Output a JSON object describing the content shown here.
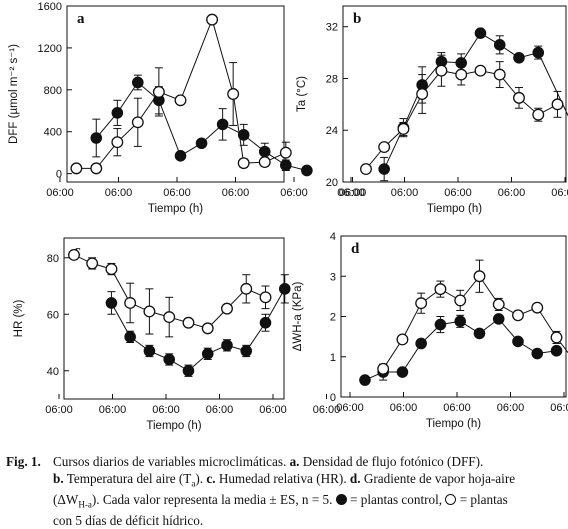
{
  "figure": {
    "time_ticks": [
      "06:00",
      "06:00",
      "06:00",
      "06:00",
      "06:00",
      "06:00"
    ],
    "panel_labels": [
      "a",
      "b",
      "c",
      "d"
    ],
    "xlabel": "Tiempo (h)"
  },
  "chart_data": [
    {
      "id": "a",
      "type": "line",
      "panel_label": "a",
      "xlabel": "Tiempo (h)",
      "ylabel": "DFF (µmol m⁻² s⁻¹)",
      "xticks": [
        0,
        1,
        2,
        3,
        4,
        5
      ],
      "xticklabels": [
        "06:00",
        "06:00",
        "06:00",
        "06:00",
        "06:00",
        "06:00"
      ],
      "ylim": [
        -80,
        1600
      ],
      "yticks": [
        0,
        400,
        800,
        1200,
        1600
      ],
      "series": [
        {
          "marker": "filled",
          "points": [
            {
              "x": 0.62,
              "y": 340,
              "err": 180
            },
            {
              "x": 0.98,
              "y": 580,
              "err": 120
            },
            {
              "x": 1.33,
              "y": 870,
              "err": 70
            },
            {
              "x": 1.69,
              "y": 700,
              "err": 130
            },
            {
              "x": 2.06,
              "y": 170,
              "err": 0
            },
            {
              "x": 2.42,
              "y": 290,
              "err": 0
            },
            {
              "x": 2.78,
              "y": 470,
              "err": 150
            },
            {
              "x": 3.14,
              "y": 370,
              "err": 100
            },
            {
              "x": 3.5,
              "y": 210,
              "err": 80
            },
            {
              "x": 3.86,
              "y": 80,
              "err": 50
            },
            {
              "x": 4.22,
              "y": 30,
              "err": 0
            }
          ]
        },
        {
          "marker": "open",
          "points": [
            {
              "x": 0.28,
              "y": 50,
              "err": 0
            },
            {
              "x": 0.62,
              "y": 50,
              "err": 0
            },
            {
              "x": 0.98,
              "y": 300,
              "err": 130
            },
            {
              "x": 1.33,
              "y": 490,
              "err": 230
            },
            {
              "x": 1.69,
              "y": 780,
              "err": 230
            },
            {
              "x": 2.06,
              "y": 700,
              "err": 0
            },
            {
              "x": 2.6,
              "y": 1470,
              "err": 0
            },
            {
              "x": 2.96,
              "y": 760,
              "err": 300
            },
            {
              "x": 3.14,
              "y": 100,
              "err": 40
            },
            {
              "x": 3.5,
              "y": 110,
              "err": 40
            },
            {
              "x": 3.86,
              "y": 200,
              "err": 100
            }
          ]
        }
      ]
    },
    {
      "id": "b",
      "type": "line",
      "panel_label": "b",
      "xlabel": "Tiempo (h)",
      "ylabel": "Ta (°C)",
      "xticks": [
        0,
        1,
        2,
        3,
        4,
        5
      ],
      "xticklabels": [
        "06:00",
        "06:00",
        "06:00",
        "06:00",
        "06:00",
        "06:00"
      ],
      "ylim": [
        20,
        33.6
      ],
      "yticks": [
        20,
        24,
        28,
        32
      ],
      "series": [
        {
          "marker": "filled",
          "points": [
            {
              "x": 0.62,
              "y": 21,
              "err": 0.9
            },
            {
              "x": 0.98,
              "y": 24.2,
              "err": 0.7
            },
            {
              "x": 1.33,
              "y": 27.5,
              "err": 1.4
            },
            {
              "x": 1.69,
              "y": 29.3,
              "err": 0.7
            },
            {
              "x": 2.06,
              "y": 29.2,
              "err": 0.7
            },
            {
              "x": 2.42,
              "y": 31.5,
              "err": 0
            },
            {
              "x": 2.78,
              "y": 30.6,
              "err": 0.7
            },
            {
              "x": 3.14,
              "y": 29.6,
              "err": 0
            },
            {
              "x": 3.5,
              "y": 30,
              "err": 0.5
            },
            {
              "x": 4.22,
              "y": 23.7,
              "err": 1.4
            }
          ]
        },
        {
          "marker": "open",
          "points": [
            {
              "x": 0.28,
              "y": 21,
              "err": 0
            },
            {
              "x": 0.62,
              "y": 22.7,
              "err": 0
            },
            {
              "x": 0.98,
              "y": 24.1,
              "err": 0.5
            },
            {
              "x": 1.33,
              "y": 26.8,
              "err": 1.5
            },
            {
              "x": 1.69,
              "y": 28.6,
              "err": 1.2
            },
            {
              "x": 2.06,
              "y": 28.3,
              "err": 0.8
            },
            {
              "x": 2.42,
              "y": 28.6,
              "err": 0
            },
            {
              "x": 2.78,
              "y": 28.3,
              "err": 1
            },
            {
              "x": 3.14,
              "y": 26.5,
              "err": 0.8
            },
            {
              "x": 3.5,
              "y": 25.2,
              "err": 0.5
            },
            {
              "x": 3.86,
              "y": 26,
              "err": 1
            }
          ]
        }
      ]
    },
    {
      "id": "c",
      "type": "line",
      "panel_label": "c",
      "xlabel": "Tiempo (h)",
      "ylabel": "HR (%)",
      "xticks": [
        0,
        1,
        2,
        3,
        4,
        5
      ],
      "xticklabels": [
        "06:00",
        "06:00",
        "06:00",
        "06:00",
        "06:00",
        "06:00"
      ],
      "ylim": [
        30,
        87
      ],
      "yticks": [
        40,
        60,
        80
      ],
      "series": [
        {
          "marker": "filled",
          "points": [
            {
              "x": 0.98,
              "y": 64,
              "err": 4
            },
            {
              "x": 1.33,
              "y": 52,
              "err": 2
            },
            {
              "x": 1.69,
              "y": 47,
              "err": 2
            },
            {
              "x": 2.06,
              "y": 44,
              "err": 2
            },
            {
              "x": 2.42,
              "y": 40,
              "err": 2
            },
            {
              "x": 2.78,
              "y": 46,
              "err": 2
            },
            {
              "x": 3.14,
              "y": 49,
              "err": 2
            },
            {
              "x": 3.5,
              "y": 47,
              "err": 2
            },
            {
              "x": 3.86,
              "y": 57,
              "err": 3
            },
            {
              "x": 4.22,
              "y": 69,
              "err": 5
            }
          ]
        },
        {
          "marker": "open",
          "points": [
            {
              "x": 0.28,
              "y": 81,
              "err": 0
            },
            {
              "x": 0.62,
              "y": 78,
              "err": 2
            },
            {
              "x": 0.98,
              "y": 76,
              "err": 2
            },
            {
              "x": 1.33,
              "y": 64,
              "err": 7
            },
            {
              "x": 1.69,
              "y": 61,
              "err": 8
            },
            {
              "x": 2.06,
              "y": 59,
              "err": 7
            },
            {
              "x": 2.42,
              "y": 57,
              "err": 0
            },
            {
              "x": 2.78,
              "y": 55,
              "err": 0
            },
            {
              "x": 3.14,
              "y": 62,
              "err": 0
            },
            {
              "x": 3.5,
              "y": 69,
              "err": 5
            },
            {
              "x": 3.86,
              "y": 66,
              "err": 4
            }
          ]
        }
      ]
    },
    {
      "id": "d",
      "type": "line",
      "panel_label": "d",
      "xlabel": "Tiempo (h)",
      "ylabel": "ΔWH-a (KPa)",
      "xticks": [
        0,
        1,
        2,
        3,
        4,
        5
      ],
      "xticklabels": [
        "06:00",
        "06:00",
        "06:00",
        "06:00",
        "06:00",
        "06:00"
      ],
      "ylim": [
        0,
        4
      ],
      "yticks": [
        0,
        1,
        2,
        3,
        4
      ],
      "series": [
        {
          "marker": "filled",
          "points": [
            {
              "x": 0.28,
              "y": 0.42,
              "err": 0
            },
            {
              "x": 0.62,
              "y": 0.62,
              "err": 0.2
            },
            {
              "x": 0.98,
              "y": 0.62,
              "err": 0
            },
            {
              "x": 1.33,
              "y": 1.33,
              "err": 0
            },
            {
              "x": 1.69,
              "y": 1.8,
              "err": 0.2
            },
            {
              "x": 2.06,
              "y": 1.88,
              "err": 0.15
            },
            {
              "x": 2.42,
              "y": 1.58,
              "err": 0
            },
            {
              "x": 2.78,
              "y": 1.94,
              "err": 0
            },
            {
              "x": 3.14,
              "y": 1.38,
              "err": 0
            },
            {
              "x": 3.5,
              "y": 1.08,
              "err": 0
            },
            {
              "x": 3.86,
              "y": 1.15,
              "err": 0
            }
          ]
        },
        {
          "marker": "open",
          "points": [
            {
              "x": 0.62,
              "y": 0.7,
              "err": 0
            },
            {
              "x": 0.98,
              "y": 1.43,
              "err": 0
            },
            {
              "x": 1.33,
              "y": 2.33,
              "err": 0.25
            },
            {
              "x": 1.69,
              "y": 2.68,
              "err": 0.2
            },
            {
              "x": 2.06,
              "y": 2.4,
              "err": 0.25
            },
            {
              "x": 2.42,
              "y": 3,
              "err": 0.4
            },
            {
              "x": 2.78,
              "y": 2.3,
              "err": 0.15
            },
            {
              "x": 3.14,
              "y": 2.03,
              "err": 0.1
            },
            {
              "x": 3.5,
              "y": 2.22,
              "err": 0
            },
            {
              "x": 3.86,
              "y": 1.48,
              "err": 0.15
            },
            {
              "x": 4.22,
              "y": 0.85,
              "err": 0
            }
          ]
        }
      ]
    }
  ],
  "caption": {
    "fig_label": "Fig. 1.",
    "l1": "Cursos diarios de variables microclimáticas.",
    "l1_a": "a.",
    "l1_b": "Densidad de flujo fotónico (DFF).",
    "l2_b": "b.",
    "l2_t": "Temperatura del aire (T",
    "l2_sub": "a",
    "l2_c": "). ",
    "l2_c2": "c.",
    "l2_d": "Humedad relativa (HR).",
    "l2_d2": "d.",
    "l2_e": "Gradiente de vapor hoja-aire",
    "l3_a": "(ΔW",
    "l3_sub": "H-a",
    "l3_b": "). Cada valor representa la media ± ES, n = 5.",
    "l3_c": "= plantas control,",
    "l3_d": "= plantas",
    "l4": "con 5 días de déficit hídrico."
  }
}
